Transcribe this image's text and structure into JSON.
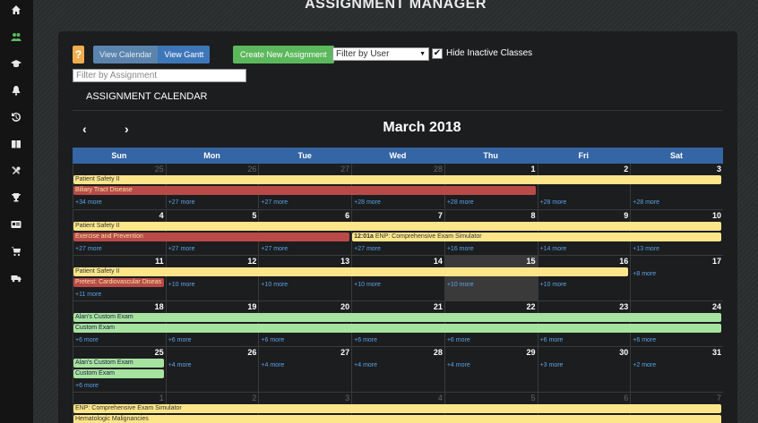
{
  "page": {
    "title": "ASSIGNMENT MANAGER"
  },
  "sidebar": {
    "items": [
      {
        "icon": "home-icon"
      },
      {
        "icon": "users-icon"
      },
      {
        "icon": "graduation-cap-icon"
      },
      {
        "icon": "bell-icon"
      },
      {
        "icon": "history-icon"
      },
      {
        "icon": "book-icon"
      },
      {
        "icon": "tools-icon"
      },
      {
        "icon": "trophy-icon"
      },
      {
        "icon": "id-card-icon"
      },
      {
        "icon": "cart-icon"
      },
      {
        "icon": "truck-icon"
      }
    ]
  },
  "toolbar": {
    "help_label": "?",
    "view_calendar": "View Calendar",
    "view_gantt": "View Gantt",
    "create_label": "Create New Assignment",
    "user_filter_value": "Filter by User",
    "hide_inactive_label": "Hide Inactive Classes",
    "hide_inactive_checked": "✔"
  },
  "assignment_filter": {
    "placeholder": "Filter by Assignment"
  },
  "calendar": {
    "heading": "ASSIGNMENT CALENDAR",
    "month": "March 2018",
    "prev": "‹",
    "next": "›",
    "days_of_week": [
      "Sun",
      "Mon",
      "Tue",
      "Wed",
      "Thu",
      "Fri",
      "Sat"
    ],
    "weeks": [
      {
        "days": [
          "25",
          "26",
          "27",
          "28",
          "1",
          "2",
          "3"
        ],
        "other": [
          true,
          true,
          true,
          true,
          false,
          false,
          false
        ],
        "events": [
          {
            "text": "Patient Safety II",
            "color": "yellow",
            "start": 0,
            "span": 7,
            "row": 0
          },
          {
            "text": "Biliary Tract Disease",
            "color": "red",
            "start": 0,
            "span": 5,
            "row": 1
          }
        ],
        "more": [
          "+34 more",
          "+27 more",
          "+27 more",
          "+28 more",
          "+28 more",
          "+28 more",
          "+28 more"
        ],
        "more_row": 2
      },
      {
        "days": [
          "4",
          "5",
          "6",
          "7",
          "8",
          "9",
          "10"
        ],
        "other": [
          false,
          false,
          false,
          false,
          false,
          false,
          false
        ],
        "events": [
          {
            "text": "Patient Safety II",
            "color": "yellow",
            "start": 0,
            "span": 7,
            "row": 0
          },
          {
            "text": "Exercise and Prevention",
            "color": "red",
            "start": 0,
            "span": 3,
            "row": 1
          },
          {
            "time": "12:01a",
            "text": " ENP: Comprehensive Exam Simulator",
            "color": "yellow",
            "start": 3,
            "span": 4,
            "row": 1
          }
        ],
        "more": [
          "+27 more",
          "+27 more",
          "+27 more",
          "+27 more",
          "+16 more",
          "+14 more",
          "+13 more"
        ],
        "more_row": 2
      },
      {
        "days": [
          "11",
          "12",
          "13",
          "14",
          "15",
          "16",
          "17"
        ],
        "other": [
          false,
          false,
          false,
          false,
          false,
          false,
          false
        ],
        "today": 4,
        "events": [
          {
            "text": "Patient Safety II",
            "color": "yellow",
            "start": 0,
            "span": 6,
            "row": 0
          },
          {
            "text": "Pretest: Cardiovascular Diseas",
            "color": "red",
            "start": 0,
            "span": 1,
            "row": 1
          }
        ],
        "more": [
          "+11 more",
          "+10 more",
          "+10 more",
          "+10 more",
          "+10 more",
          "+10 more",
          "+8 more"
        ],
        "more_rows": [
          2,
          1,
          1,
          1,
          1,
          1,
          0
        ]
      },
      {
        "days": [
          "18",
          "19",
          "20",
          "21",
          "22",
          "23",
          "24"
        ],
        "other": [
          false,
          false,
          false,
          false,
          false,
          false,
          false
        ],
        "events": [
          {
            "text": "Alan's Custom Exam",
            "color": "green",
            "start": 0,
            "span": 7,
            "row": 0
          },
          {
            "text": "Custom Exam",
            "color": "green",
            "start": 0,
            "span": 7,
            "row": 1
          }
        ],
        "more": [
          "+6 more",
          "+6 more",
          "+6 more",
          "+6 more",
          "+6 more",
          "+6 more",
          "+6 more"
        ],
        "more_row": 2
      },
      {
        "days": [
          "25",
          "26",
          "27",
          "28",
          "29",
          "30",
          "31"
        ],
        "other": [
          false,
          false,
          false,
          false,
          false,
          false,
          false
        ],
        "events": [
          {
            "text": "Alan's Custom Exam",
            "color": "green",
            "start": 0,
            "span": 1,
            "row": 0
          },
          {
            "text": "Custom Exam",
            "color": "green",
            "start": 0,
            "span": 1,
            "row": 1
          }
        ],
        "more": [
          "+6 more",
          "+4 more",
          "+4 more",
          "+4 more",
          "+4 more",
          "+3 more",
          "+2 more"
        ],
        "more_rows": [
          2,
          0,
          0,
          0,
          0,
          0,
          0
        ]
      },
      {
        "days": [
          "1",
          "2",
          "3",
          "4",
          "5",
          "6",
          "7"
        ],
        "other": [
          true,
          true,
          true,
          true,
          true,
          true,
          true
        ],
        "events": [
          {
            "text": "ENP: Comprehensive Exam Simulator",
            "color": "yellow",
            "start": 0,
            "span": 7,
            "row": 0
          },
          {
            "text": "Hematologic Malignancies",
            "color": "yellow",
            "start": 0,
            "span": 7,
            "row": 1
          }
        ],
        "more": [],
        "more_row": 2
      }
    ]
  }
}
